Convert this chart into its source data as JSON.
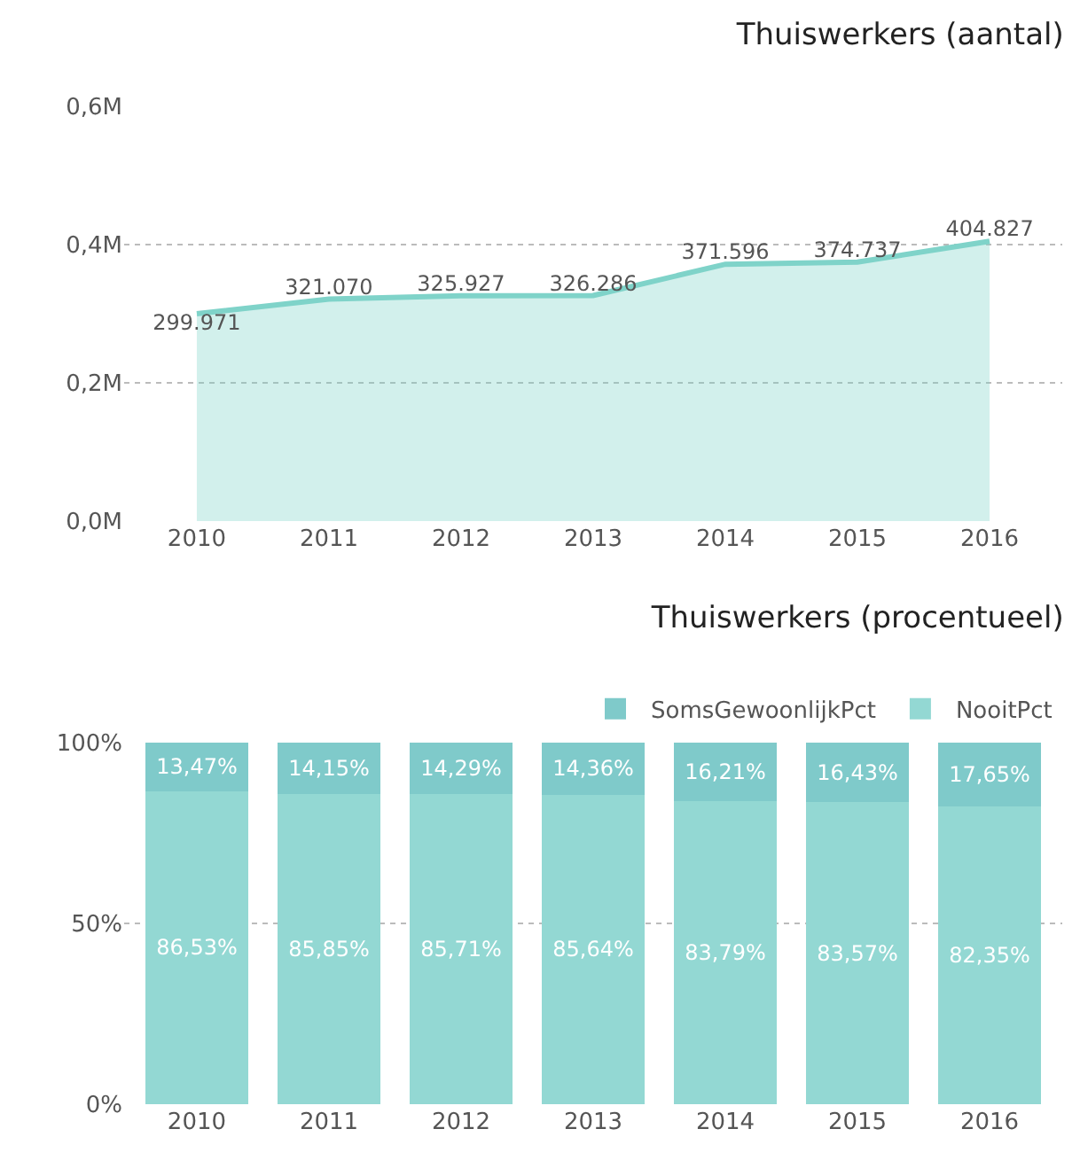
{
  "chart_data": [
    {
      "type": "area",
      "title": "Thuiswerkers (aantal)",
      "categories": [
        "2010",
        "2011",
        "2012",
        "2013",
        "2014",
        "2015",
        "2016"
      ],
      "values": [
        299971,
        321070,
        325927,
        326286,
        371596,
        374737,
        404827
      ],
      "value_labels": [
        "299.971",
        "321.070",
        "325.927",
        "326.286",
        "371.596",
        "374.737",
        "404.827"
      ],
      "color": "#7fd3c9",
      "ylim": [
        0,
        600000
      ],
      "yticks": [
        {
          "value": 0,
          "label": "0,0M"
        },
        {
          "value": 200000,
          "label": "0,2M"
        },
        {
          "value": 400000,
          "label": "0,4M"
        },
        {
          "value": 600000,
          "label": "0,6M"
        }
      ],
      "grid": "y",
      "legend": false
    },
    {
      "type": "bar",
      "stacked": true,
      "title": "Thuiswerkers (procentueel)",
      "categories": [
        "2010",
        "2011",
        "2012",
        "2013",
        "2014",
        "2015",
        "2016"
      ],
      "series": [
        {
          "name": "NooitPct",
          "color": "#93d8d3",
          "values": [
            86.53,
            85.85,
            85.71,
            85.64,
            83.79,
            83.57,
            82.35
          ],
          "value_labels": [
            "86,53%",
            "85,85%",
            "85,71%",
            "85,64%",
            "83,79%",
            "83,57%",
            "82,35%"
          ]
        },
        {
          "name": "SomsGewoonlijkPct",
          "color": "#7fcaca",
          "values": [
            13.47,
            14.15,
            14.29,
            14.36,
            16.21,
            16.43,
            17.65
          ],
          "value_labels": [
            "13,47%",
            "14,15%",
            "14,29%",
            "14,36%",
            "16,21%",
            "16,43%",
            "17,65%"
          ]
        }
      ],
      "ylim": [
        0,
        100
      ],
      "yticks": [
        {
          "value": 0,
          "label": "0%"
        },
        {
          "value": 50,
          "label": "50%"
        },
        {
          "value": 100,
          "label": "100%"
        }
      ],
      "grid": "y",
      "legend": "top right"
    }
  ]
}
